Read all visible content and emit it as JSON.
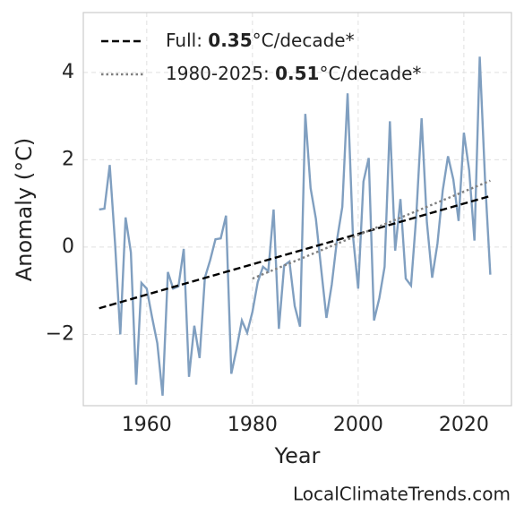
{
  "chart_data": {
    "type": "line",
    "y_label": "Anomaly (°C)",
    "x_label": "Year",
    "source": "LocalClimateTrends.com",
    "xlim": [
      1948,
      2029
    ],
    "ylim": [
      -3.63,
      5.37
    ],
    "xticks": [
      1960,
      1980,
      2000,
      2020
    ],
    "yticks": [
      {
        "value": -2,
        "label": "−2"
      },
      0,
      2,
      4
    ],
    "grid": true,
    "legend": "upper left",
    "series": [
      {
        "color": "#809fc0",
        "style": "solid",
        "x": [
          1951,
          1952,
          1953,
          1954,
          1955,
          1956,
          1957,
          1958,
          1959,
          1960,
          1961,
          1962,
          1963,
          1964,
          1965,
          1966,
          1967,
          1968,
          1969,
          1970,
          1971,
          1972,
          1973,
          1974,
          1975,
          1976,
          1977,
          1978,
          1979,
          1980,
          1981,
          1982,
          1983,
          1984,
          1985,
          1986,
          1987,
          1988,
          1989,
          1990,
          1991,
          1992,
          1993,
          1994,
          1995,
          1996,
          1997,
          1998,
          1999,
          2000,
          2001,
          2002,
          2003,
          2004,
          2005,
          2006,
          2007,
          2008,
          2009,
          2010,
          2011,
          2012,
          2013,
          2014,
          2015,
          2016,
          2017,
          2018,
          2019,
          2020,
          2021,
          2022,
          2023,
          2024,
          2025
        ],
        "values": [
          0.86,
          0.88,
          1.88,
          0.1,
          -2.0,
          0.68,
          -0.12,
          -3.15,
          -0.82,
          -0.95,
          -1.6,
          -2.2,
          -3.4,
          -0.57,
          -0.95,
          -0.9,
          -0.04,
          -2.97,
          -1.8,
          -2.54,
          -0.7,
          -0.3,
          0.18,
          0.2,
          0.72,
          -2.9,
          -2.33,
          -1.68,
          -1.96,
          -1.48,
          -0.8,
          -0.45,
          -0.55,
          0.86,
          -1.87,
          -0.42,
          -0.33,
          -1.35,
          -1.82,
          3.05,
          1.35,
          0.65,
          -0.5,
          -1.62,
          -0.86,
          0.17,
          0.92,
          3.52,
          0.28,
          -0.95,
          1.5,
          2.04,
          -1.68,
          -1.17,
          -0.45,
          2.88,
          -0.08,
          1.1,
          -0.72,
          -0.88,
          0.73,
          2.95,
          0.57,
          -0.7,
          0.08,
          1.3,
          2.08,
          1.55,
          0.6,
          2.62,
          1.76,
          0.15,
          4.36,
          1.55,
          -0.63
        ]
      },
      {
        "name": [
          "Full: ",
          "0.35",
          "°C/decade*"
        ],
        "color": "#000000",
        "style": "dashed",
        "x": [
          1951,
          2025
        ],
        "values": [
          -1.4,
          1.17
        ]
      },
      {
        "name": [
          "1980-2025: ",
          "0.51",
          "°C/decade*"
        ],
        "color": "#808080",
        "style": "dotted",
        "x": [
          1980,
          2025
        ],
        "values": [
          -0.72,
          1.52
        ]
      }
    ]
  }
}
